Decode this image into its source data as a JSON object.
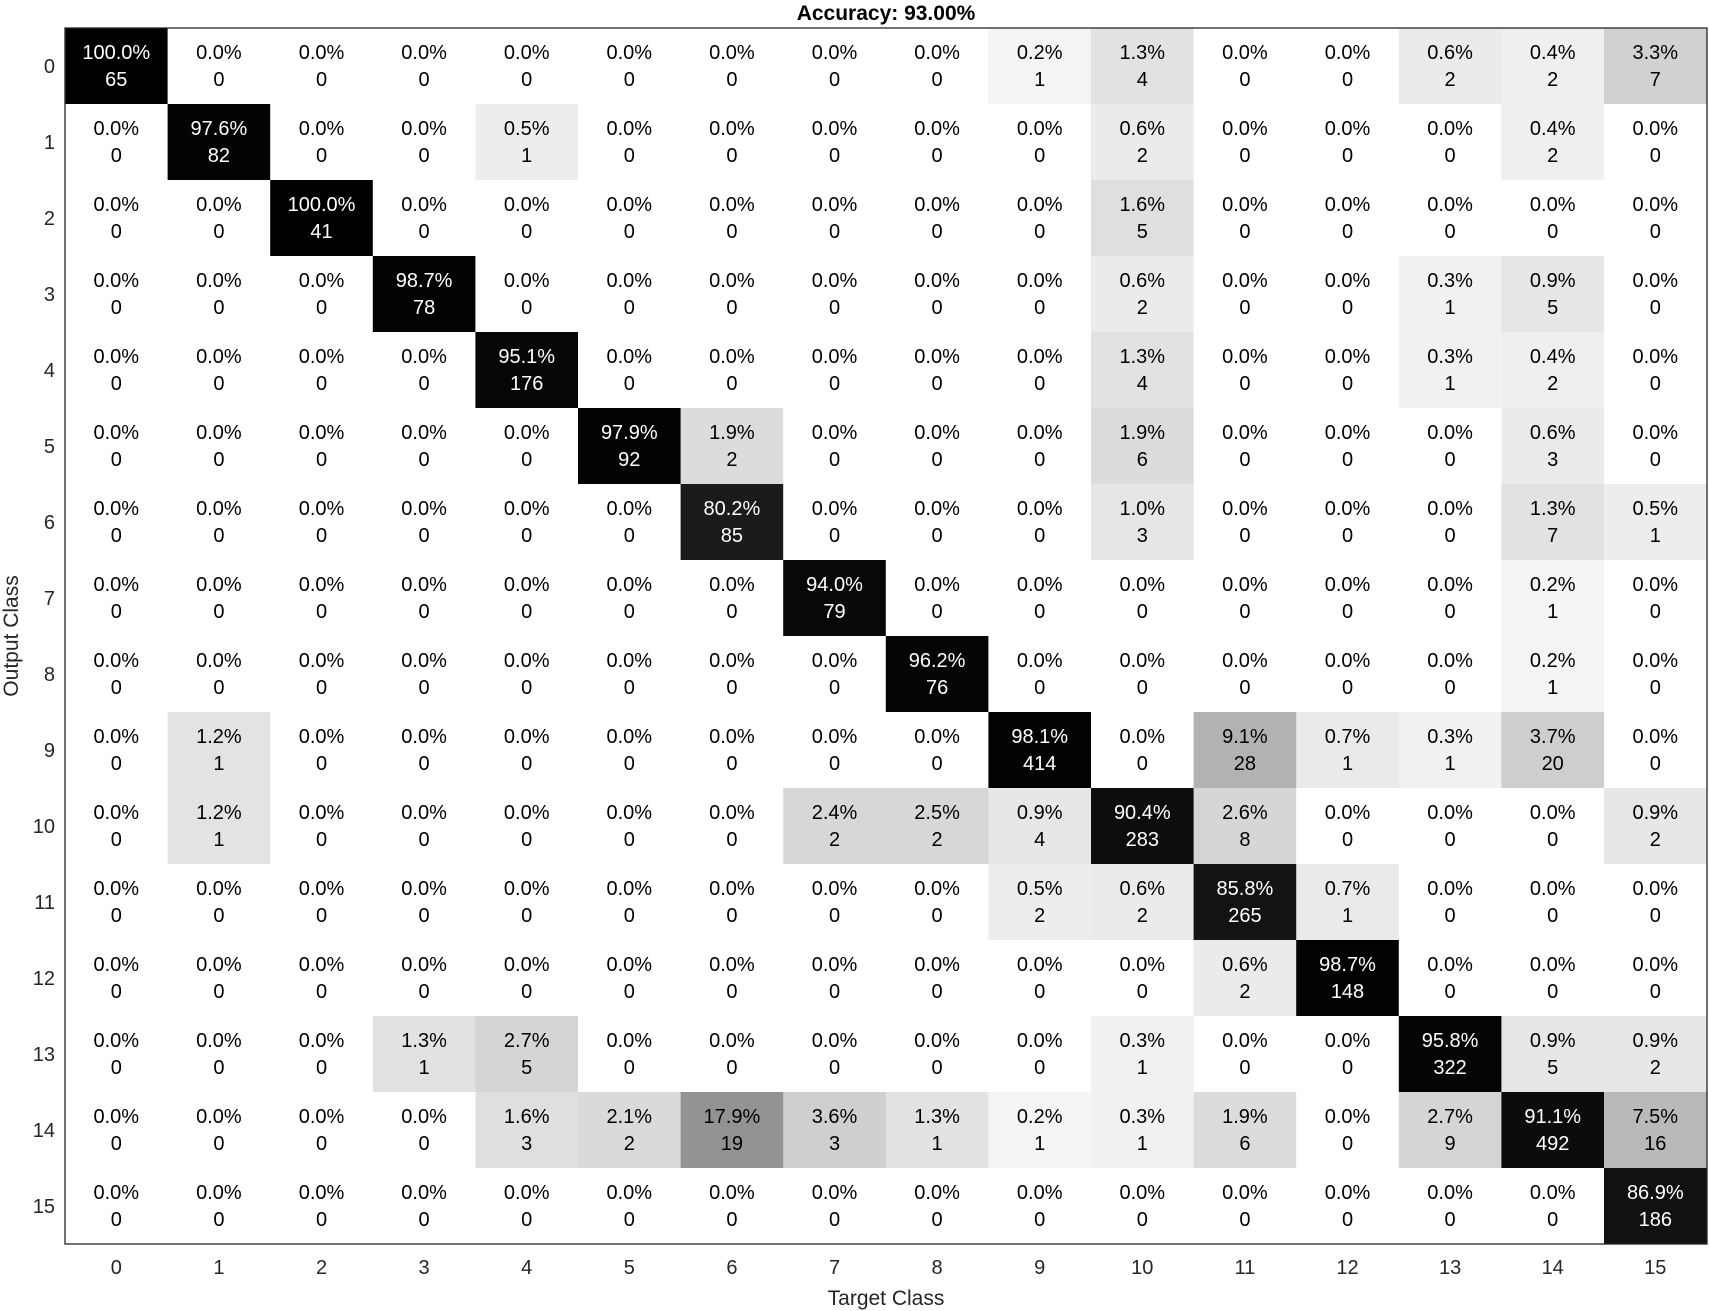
{
  "chart_data": {
    "type": "heatmap",
    "title": "Accuracy: 93.00%",
    "xlabel": "Target Class",
    "ylabel": "Output Class",
    "x_tick_labels": [
      "0",
      "1",
      "2",
      "3",
      "4",
      "5",
      "6",
      "7",
      "8",
      "9",
      "10",
      "11",
      "12",
      "13",
      "14",
      "15"
    ],
    "y_tick_labels": [
      "0",
      "1",
      "2",
      "3",
      "4",
      "5",
      "6",
      "7",
      "8",
      "9",
      "10",
      "11",
      "12",
      "13",
      "14",
      "15"
    ],
    "colormap": "white-to-black",
    "color_low": "#ffffff",
    "color_high": "#000000",
    "grid": false,
    "cells": [
      [
        {
          "p": "100.0%",
          "n": "65"
        },
        {
          "p": "0.0%",
          "n": "0"
        },
        {
          "p": "0.0%",
          "n": "0"
        },
        {
          "p": "0.0%",
          "n": "0"
        },
        {
          "p": "0.0%",
          "n": "0"
        },
        {
          "p": "0.0%",
          "n": "0"
        },
        {
          "p": "0.0%",
          "n": "0"
        },
        {
          "p": "0.0%",
          "n": "0"
        },
        {
          "p": "0.0%",
          "n": "0"
        },
        {
          "p": "0.2%",
          "n": "1"
        },
        {
          "p": "1.3%",
          "n": "4"
        },
        {
          "p": "0.0%",
          "n": "0"
        },
        {
          "p": "0.0%",
          "n": "0"
        },
        {
          "p": "0.6%",
          "n": "2"
        },
        {
          "p": "0.4%",
          "n": "2"
        },
        {
          "p": "3.3%",
          "n": "7"
        }
      ],
      [
        {
          "p": "0.0%",
          "n": "0"
        },
        {
          "p": "97.6%",
          "n": "82"
        },
        {
          "p": "0.0%",
          "n": "0"
        },
        {
          "p": "0.0%",
          "n": "0"
        },
        {
          "p": "0.5%",
          "n": "1"
        },
        {
          "p": "0.0%",
          "n": "0"
        },
        {
          "p": "0.0%",
          "n": "0"
        },
        {
          "p": "0.0%",
          "n": "0"
        },
        {
          "p": "0.0%",
          "n": "0"
        },
        {
          "p": "0.0%",
          "n": "0"
        },
        {
          "p": "0.6%",
          "n": "2"
        },
        {
          "p": "0.0%",
          "n": "0"
        },
        {
          "p": "0.0%",
          "n": "0"
        },
        {
          "p": "0.0%",
          "n": "0"
        },
        {
          "p": "0.4%",
          "n": "2"
        },
        {
          "p": "0.0%",
          "n": "0"
        }
      ],
      [
        {
          "p": "0.0%",
          "n": "0"
        },
        {
          "p": "0.0%",
          "n": "0"
        },
        {
          "p": "100.0%",
          "n": "41"
        },
        {
          "p": "0.0%",
          "n": "0"
        },
        {
          "p": "0.0%",
          "n": "0"
        },
        {
          "p": "0.0%",
          "n": "0"
        },
        {
          "p": "0.0%",
          "n": "0"
        },
        {
          "p": "0.0%",
          "n": "0"
        },
        {
          "p": "0.0%",
          "n": "0"
        },
        {
          "p": "0.0%",
          "n": "0"
        },
        {
          "p": "1.6%",
          "n": "5"
        },
        {
          "p": "0.0%",
          "n": "0"
        },
        {
          "p": "0.0%",
          "n": "0"
        },
        {
          "p": "0.0%",
          "n": "0"
        },
        {
          "p": "0.0%",
          "n": "0"
        },
        {
          "p": "0.0%",
          "n": "0"
        }
      ],
      [
        {
          "p": "0.0%",
          "n": "0"
        },
        {
          "p": "0.0%",
          "n": "0"
        },
        {
          "p": "0.0%",
          "n": "0"
        },
        {
          "p": "98.7%",
          "n": "78"
        },
        {
          "p": "0.0%",
          "n": "0"
        },
        {
          "p": "0.0%",
          "n": "0"
        },
        {
          "p": "0.0%",
          "n": "0"
        },
        {
          "p": "0.0%",
          "n": "0"
        },
        {
          "p": "0.0%",
          "n": "0"
        },
        {
          "p": "0.0%",
          "n": "0"
        },
        {
          "p": "0.6%",
          "n": "2"
        },
        {
          "p": "0.0%",
          "n": "0"
        },
        {
          "p": "0.0%",
          "n": "0"
        },
        {
          "p": "0.3%",
          "n": "1"
        },
        {
          "p": "0.9%",
          "n": "5"
        },
        {
          "p": "0.0%",
          "n": "0"
        }
      ],
      [
        {
          "p": "0.0%",
          "n": "0"
        },
        {
          "p": "0.0%",
          "n": "0"
        },
        {
          "p": "0.0%",
          "n": "0"
        },
        {
          "p": "0.0%",
          "n": "0"
        },
        {
          "p": "95.1%",
          "n": "176"
        },
        {
          "p": "0.0%",
          "n": "0"
        },
        {
          "p": "0.0%",
          "n": "0"
        },
        {
          "p": "0.0%",
          "n": "0"
        },
        {
          "p": "0.0%",
          "n": "0"
        },
        {
          "p": "0.0%",
          "n": "0"
        },
        {
          "p": "1.3%",
          "n": "4"
        },
        {
          "p": "0.0%",
          "n": "0"
        },
        {
          "p": "0.0%",
          "n": "0"
        },
        {
          "p": "0.3%",
          "n": "1"
        },
        {
          "p": "0.4%",
          "n": "2"
        },
        {
          "p": "0.0%",
          "n": "0"
        }
      ],
      [
        {
          "p": "0.0%",
          "n": "0"
        },
        {
          "p": "0.0%",
          "n": "0"
        },
        {
          "p": "0.0%",
          "n": "0"
        },
        {
          "p": "0.0%",
          "n": "0"
        },
        {
          "p": "0.0%",
          "n": "0"
        },
        {
          "p": "97.9%",
          "n": "92"
        },
        {
          "p": "1.9%",
          "n": "2"
        },
        {
          "p": "0.0%",
          "n": "0"
        },
        {
          "p": "0.0%",
          "n": "0"
        },
        {
          "p": "0.0%",
          "n": "0"
        },
        {
          "p": "1.9%",
          "n": "6"
        },
        {
          "p": "0.0%",
          "n": "0"
        },
        {
          "p": "0.0%",
          "n": "0"
        },
        {
          "p": "0.0%",
          "n": "0"
        },
        {
          "p": "0.6%",
          "n": "3"
        },
        {
          "p": "0.0%",
          "n": "0"
        }
      ],
      [
        {
          "p": "0.0%",
          "n": "0"
        },
        {
          "p": "0.0%",
          "n": "0"
        },
        {
          "p": "0.0%",
          "n": "0"
        },
        {
          "p": "0.0%",
          "n": "0"
        },
        {
          "p": "0.0%",
          "n": "0"
        },
        {
          "p": "0.0%",
          "n": "0"
        },
        {
          "p": "80.2%",
          "n": "85"
        },
        {
          "p": "0.0%",
          "n": "0"
        },
        {
          "p": "0.0%",
          "n": "0"
        },
        {
          "p": "0.0%",
          "n": "0"
        },
        {
          "p": "1.0%",
          "n": "3"
        },
        {
          "p": "0.0%",
          "n": "0"
        },
        {
          "p": "0.0%",
          "n": "0"
        },
        {
          "p": "0.0%",
          "n": "0"
        },
        {
          "p": "1.3%",
          "n": "7"
        },
        {
          "p": "0.5%",
          "n": "1"
        }
      ],
      [
        {
          "p": "0.0%",
          "n": "0"
        },
        {
          "p": "0.0%",
          "n": "0"
        },
        {
          "p": "0.0%",
          "n": "0"
        },
        {
          "p": "0.0%",
          "n": "0"
        },
        {
          "p": "0.0%",
          "n": "0"
        },
        {
          "p": "0.0%",
          "n": "0"
        },
        {
          "p": "0.0%",
          "n": "0"
        },
        {
          "p": "94.0%",
          "n": "79"
        },
        {
          "p": "0.0%",
          "n": "0"
        },
        {
          "p": "0.0%",
          "n": "0"
        },
        {
          "p": "0.0%",
          "n": "0"
        },
        {
          "p": "0.0%",
          "n": "0"
        },
        {
          "p": "0.0%",
          "n": "0"
        },
        {
          "p": "0.0%",
          "n": "0"
        },
        {
          "p": "0.2%",
          "n": "1"
        },
        {
          "p": "0.0%",
          "n": "0"
        }
      ],
      [
        {
          "p": "0.0%",
          "n": "0"
        },
        {
          "p": "0.0%",
          "n": "0"
        },
        {
          "p": "0.0%",
          "n": "0"
        },
        {
          "p": "0.0%",
          "n": "0"
        },
        {
          "p": "0.0%",
          "n": "0"
        },
        {
          "p": "0.0%",
          "n": "0"
        },
        {
          "p": "0.0%",
          "n": "0"
        },
        {
          "p": "0.0%",
          "n": "0"
        },
        {
          "p": "96.2%",
          "n": "76"
        },
        {
          "p": "0.0%",
          "n": "0"
        },
        {
          "p": "0.0%",
          "n": "0"
        },
        {
          "p": "0.0%",
          "n": "0"
        },
        {
          "p": "0.0%",
          "n": "0"
        },
        {
          "p": "0.0%",
          "n": "0"
        },
        {
          "p": "0.2%",
          "n": "1"
        },
        {
          "p": "0.0%",
          "n": "0"
        }
      ],
      [
        {
          "p": "0.0%",
          "n": "0"
        },
        {
          "p": "1.2%",
          "n": "1"
        },
        {
          "p": "0.0%",
          "n": "0"
        },
        {
          "p": "0.0%",
          "n": "0"
        },
        {
          "p": "0.0%",
          "n": "0"
        },
        {
          "p": "0.0%",
          "n": "0"
        },
        {
          "p": "0.0%",
          "n": "0"
        },
        {
          "p": "0.0%",
          "n": "0"
        },
        {
          "p": "0.0%",
          "n": "0"
        },
        {
          "p": "98.1%",
          "n": "414"
        },
        {
          "p": "0.0%",
          "n": "0"
        },
        {
          "p": "9.1%",
          "n": "28"
        },
        {
          "p": "0.7%",
          "n": "1"
        },
        {
          "p": "0.3%",
          "n": "1"
        },
        {
          "p": "3.7%",
          "n": "20"
        },
        {
          "p": "0.0%",
          "n": "0"
        }
      ],
      [
        {
          "p": "0.0%",
          "n": "0"
        },
        {
          "p": "1.2%",
          "n": "1"
        },
        {
          "p": "0.0%",
          "n": "0"
        },
        {
          "p": "0.0%",
          "n": "0"
        },
        {
          "p": "0.0%",
          "n": "0"
        },
        {
          "p": "0.0%",
          "n": "0"
        },
        {
          "p": "0.0%",
          "n": "0"
        },
        {
          "p": "2.4%",
          "n": "2"
        },
        {
          "p": "2.5%",
          "n": "2"
        },
        {
          "p": "0.9%",
          "n": "4"
        },
        {
          "p": "90.4%",
          "n": "283"
        },
        {
          "p": "2.6%",
          "n": "8"
        },
        {
          "p": "0.0%",
          "n": "0"
        },
        {
          "p": "0.0%",
          "n": "0"
        },
        {
          "p": "0.0%",
          "n": "0"
        },
        {
          "p": "0.9%",
          "n": "2"
        }
      ],
      [
        {
          "p": "0.0%",
          "n": "0"
        },
        {
          "p": "0.0%",
          "n": "0"
        },
        {
          "p": "0.0%",
          "n": "0"
        },
        {
          "p": "0.0%",
          "n": "0"
        },
        {
          "p": "0.0%",
          "n": "0"
        },
        {
          "p": "0.0%",
          "n": "0"
        },
        {
          "p": "0.0%",
          "n": "0"
        },
        {
          "p": "0.0%",
          "n": "0"
        },
        {
          "p": "0.0%",
          "n": "0"
        },
        {
          "p": "0.5%",
          "n": "2"
        },
        {
          "p": "0.6%",
          "n": "2"
        },
        {
          "p": "85.8%",
          "n": "265"
        },
        {
          "p": "0.7%",
          "n": "1"
        },
        {
          "p": "0.0%",
          "n": "0"
        },
        {
          "p": "0.0%",
          "n": "0"
        },
        {
          "p": "0.0%",
          "n": "0"
        }
      ],
      [
        {
          "p": "0.0%",
          "n": "0"
        },
        {
          "p": "0.0%",
          "n": "0"
        },
        {
          "p": "0.0%",
          "n": "0"
        },
        {
          "p": "0.0%",
          "n": "0"
        },
        {
          "p": "0.0%",
          "n": "0"
        },
        {
          "p": "0.0%",
          "n": "0"
        },
        {
          "p": "0.0%",
          "n": "0"
        },
        {
          "p": "0.0%",
          "n": "0"
        },
        {
          "p": "0.0%",
          "n": "0"
        },
        {
          "p": "0.0%",
          "n": "0"
        },
        {
          "p": "0.0%",
          "n": "0"
        },
        {
          "p": "0.6%",
          "n": "2"
        },
        {
          "p": "98.7%",
          "n": "148"
        },
        {
          "p": "0.0%",
          "n": "0"
        },
        {
          "p": "0.0%",
          "n": "0"
        },
        {
          "p": "0.0%",
          "n": "0"
        }
      ],
      [
        {
          "p": "0.0%",
          "n": "0"
        },
        {
          "p": "0.0%",
          "n": "0"
        },
        {
          "p": "0.0%",
          "n": "0"
        },
        {
          "p": "1.3%",
          "n": "1"
        },
        {
          "p": "2.7%",
          "n": "5"
        },
        {
          "p": "0.0%",
          "n": "0"
        },
        {
          "p": "0.0%",
          "n": "0"
        },
        {
          "p": "0.0%",
          "n": "0"
        },
        {
          "p": "0.0%",
          "n": "0"
        },
        {
          "p": "0.0%",
          "n": "0"
        },
        {
          "p": "0.3%",
          "n": "1"
        },
        {
          "p": "0.0%",
          "n": "0"
        },
        {
          "p": "0.0%",
          "n": "0"
        },
        {
          "p": "95.8%",
          "n": "322"
        },
        {
          "p": "0.9%",
          "n": "5"
        },
        {
          "p": "0.9%",
          "n": "2"
        }
      ],
      [
        {
          "p": "0.0%",
          "n": "0"
        },
        {
          "p": "0.0%",
          "n": "0"
        },
        {
          "p": "0.0%",
          "n": "0"
        },
        {
          "p": "0.0%",
          "n": "0"
        },
        {
          "p": "1.6%",
          "n": "3"
        },
        {
          "p": "2.1%",
          "n": "2"
        },
        {
          "p": "17.9%",
          "n": "19"
        },
        {
          "p": "3.6%",
          "n": "3"
        },
        {
          "p": "1.3%",
          "n": "1"
        },
        {
          "p": "0.2%",
          "n": "1"
        },
        {
          "p": "0.3%",
          "n": "1"
        },
        {
          "p": "1.9%",
          "n": "6"
        },
        {
          "p": "0.0%",
          "n": "0"
        },
        {
          "p": "2.7%",
          "n": "9"
        },
        {
          "p": "91.1%",
          "n": "492"
        },
        {
          "p": "7.5%",
          "n": "16"
        }
      ],
      [
        {
          "p": "0.0%",
          "n": "0"
        },
        {
          "p": "0.0%",
          "n": "0"
        },
        {
          "p": "0.0%",
          "n": "0"
        },
        {
          "p": "0.0%",
          "n": "0"
        },
        {
          "p": "0.0%",
          "n": "0"
        },
        {
          "p": "0.0%",
          "n": "0"
        },
        {
          "p": "0.0%",
          "n": "0"
        },
        {
          "p": "0.0%",
          "n": "0"
        },
        {
          "p": "0.0%",
          "n": "0"
        },
        {
          "p": "0.0%",
          "n": "0"
        },
        {
          "p": "0.0%",
          "n": "0"
        },
        {
          "p": "0.0%",
          "n": "0"
        },
        {
          "p": "0.0%",
          "n": "0"
        },
        {
          "p": "0.0%",
          "n": "0"
        },
        {
          "p": "0.0%",
          "n": "0"
        },
        {
          "p": "86.9%",
          "n": "186"
        }
      ]
    ]
  }
}
